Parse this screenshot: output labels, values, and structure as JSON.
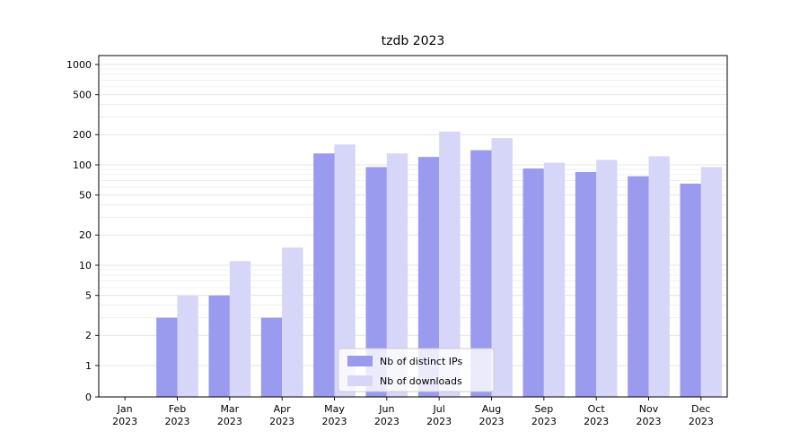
{
  "chart_data": {
    "type": "bar",
    "title": "tzdb 2023",
    "categories": [
      "Jan",
      "Feb",
      "Mar",
      "Apr",
      "May",
      "Jun",
      "Jul",
      "Aug",
      "Sep",
      "Oct",
      "Nov",
      "Dec"
    ],
    "year": "2023",
    "series": [
      {
        "name": "Nb of distinct IPs",
        "color": "#9a9aee",
        "values": [
          0,
          3,
          5,
          3,
          130,
          95,
          120,
          140,
          92,
          85,
          77,
          65
        ]
      },
      {
        "name": "Nb of downloads",
        "color": "#d6d6f8",
        "values": [
          0,
          5,
          11,
          15,
          160,
          130,
          215,
          185,
          105,
          112,
          122,
          95
        ]
      }
    ],
    "yticks": [
      0,
      1,
      2,
      5,
      10,
      20,
      50,
      100,
      200,
      500,
      1000
    ],
    "yscale": "symlog",
    "ylim": [
      0,
      1000
    ],
    "xlabel": "",
    "ylabel": "",
    "grid": true,
    "legend_position": "lower center",
    "frame_color": "#000000",
    "major_grid_color": "#dcdcdc",
    "minor_grid_color": "#ececec",
    "legend_border_color": "#cccccc"
  }
}
